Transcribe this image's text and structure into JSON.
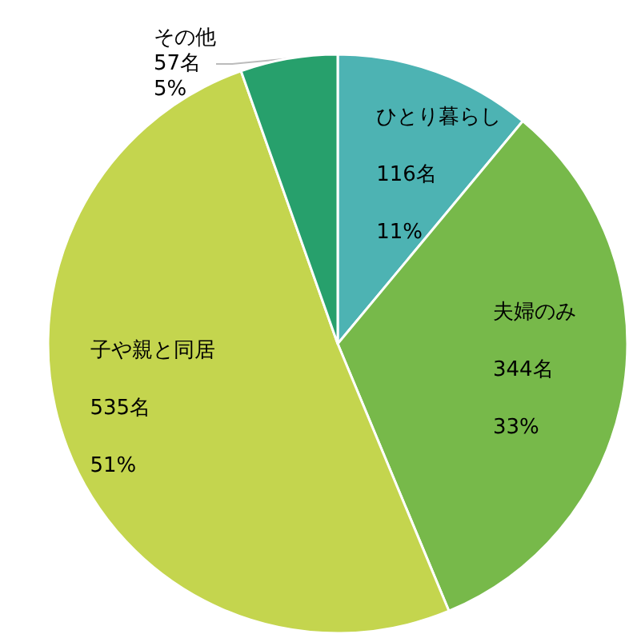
{
  "chart_data": {
    "type": "pie",
    "categories": [
      "ひとり暮らし",
      "夫婦のみ",
      "子や親と同居",
      "その他"
    ],
    "values": [
      116,
      344,
      535,
      57
    ],
    "colors": [
      "#4db3b3",
      "#77b94a",
      "#c4d54e",
      "#27a06c"
    ],
    "value_labels": [
      "116名\n11%",
      "344名\n33%",
      "535名\n51%",
      "57名\n5%"
    ]
  }
}
